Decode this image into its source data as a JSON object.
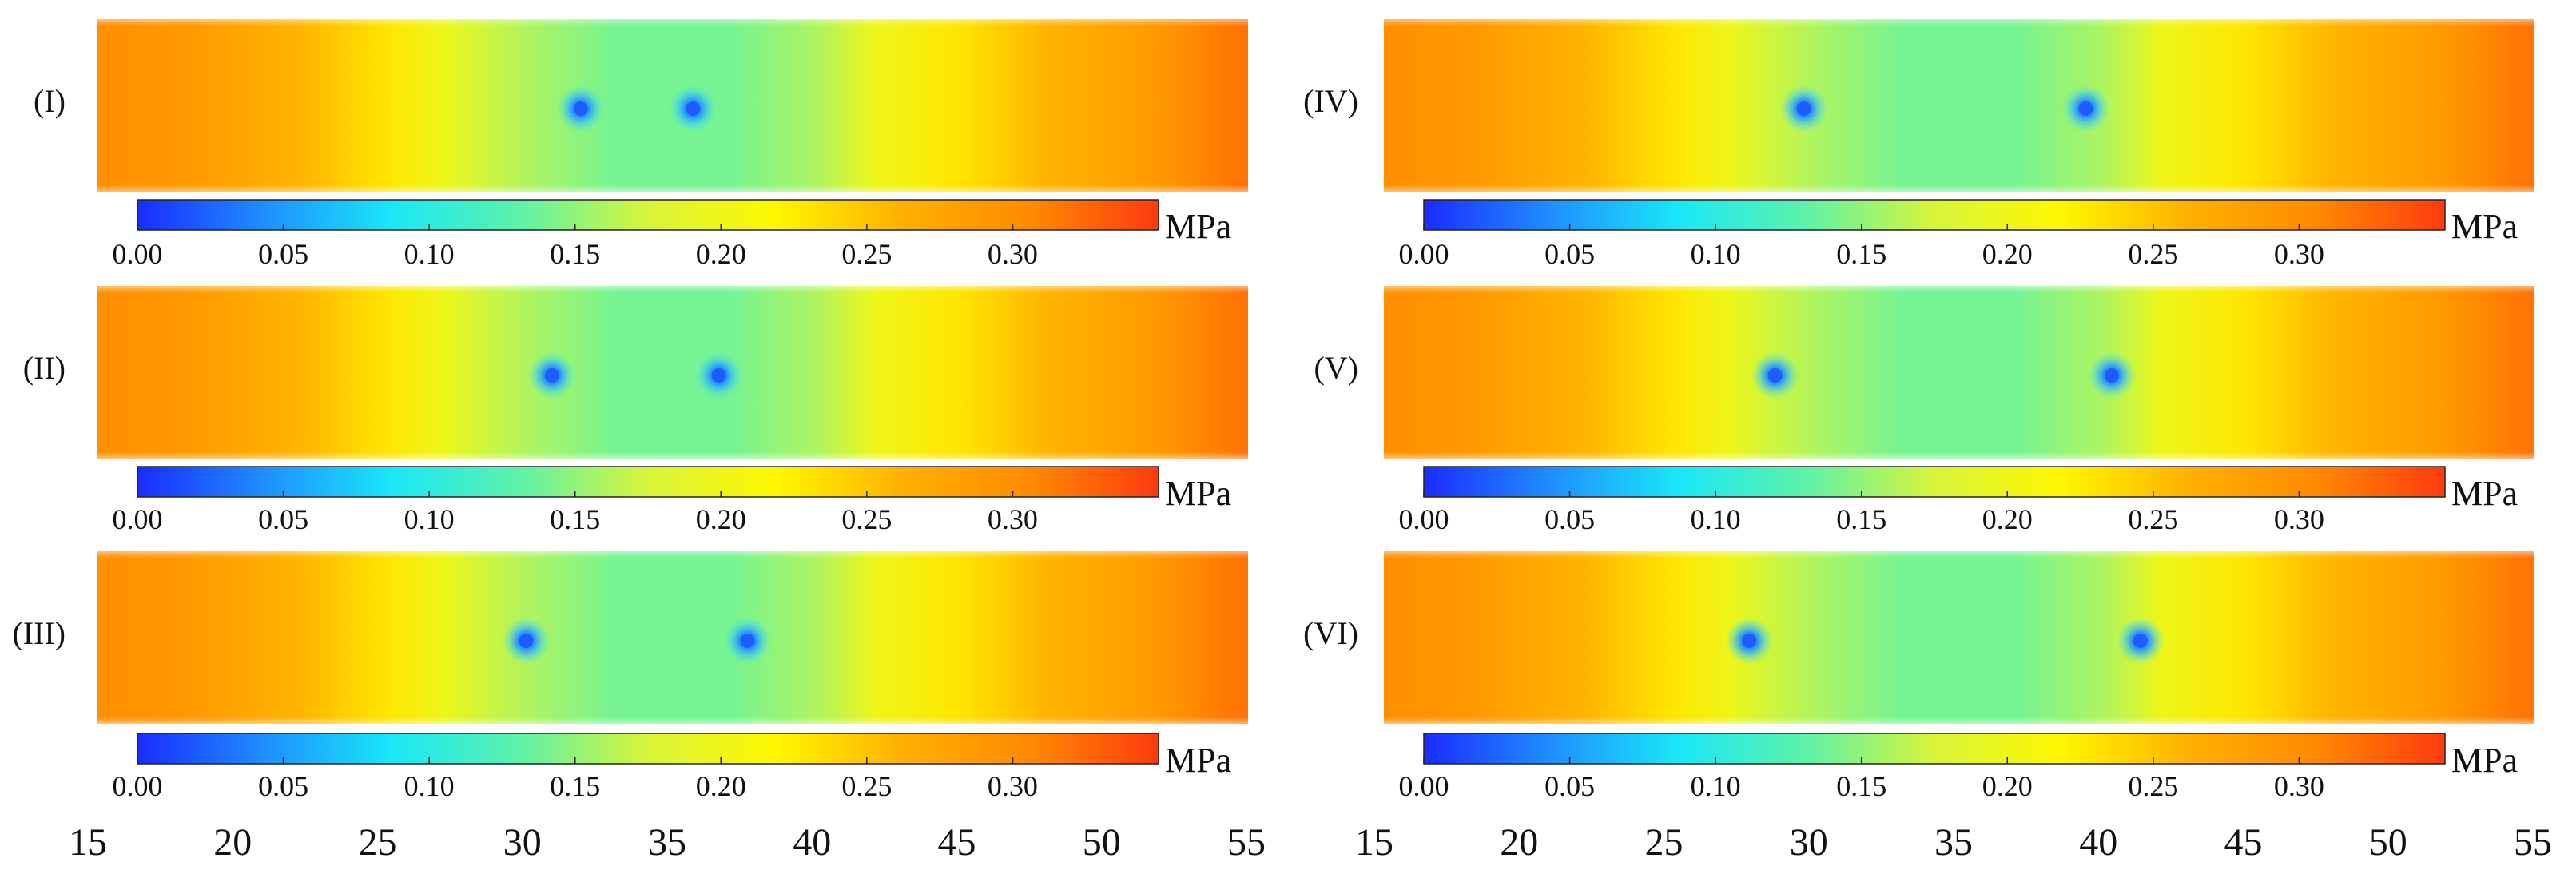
{
  "chart_data": {
    "type": "heatmap",
    "title": "",
    "unit": "MPa",
    "colormap": {
      "stops": [
        "#1a2cff",
        "#1f8fff",
        "#19e8f7",
        "#5ef2a8",
        "#d8f53a",
        "#fff700",
        "#ffb000",
        "#ff8a00",
        "#ff3a10"
      ],
      "range": [
        0,
        0.35
      ],
      "tick_labels": [
        "0.00",
        "0.05",
        "0.10",
        "0.15",
        "0.20",
        "0.25",
        "0.30"
      ]
    },
    "x_axis": {
      "range": [
        15,
        55
      ],
      "ticks": [
        "15",
        "20",
        "25",
        "30",
        "35",
        "40",
        "45",
        "50",
        "55"
      ]
    },
    "panels": [
      {
        "label": "(I)",
        "holes_x": [
          31.8,
          35.7
        ]
      },
      {
        "label": "(II)",
        "holes_x": [
          30.8,
          36.6
        ]
      },
      {
        "label": "(III)",
        "holes_x": [
          29.9,
          37.6
        ]
      },
      {
        "label": "(IV)",
        "holes_x": [
          29.6,
          39.4
        ]
      },
      {
        "label": "(V)",
        "holes_x": [
          28.6,
          40.3
        ]
      },
      {
        "label": "(VI)",
        "holes_x": [
          27.7,
          41.3
        ]
      }
    ],
    "stress_profile": {
      "x": [
        15,
        18,
        22,
        25,
        27,
        30,
        33,
        35,
        37,
        40,
        42,
        45,
        48,
        52,
        55
      ],
      "value": [
        0.3,
        0.29,
        0.26,
        0.23,
        0.2,
        0.16,
        0.14,
        0.14,
        0.14,
        0.16,
        0.2,
        0.23,
        0.26,
        0.29,
        0.32
      ]
    }
  }
}
